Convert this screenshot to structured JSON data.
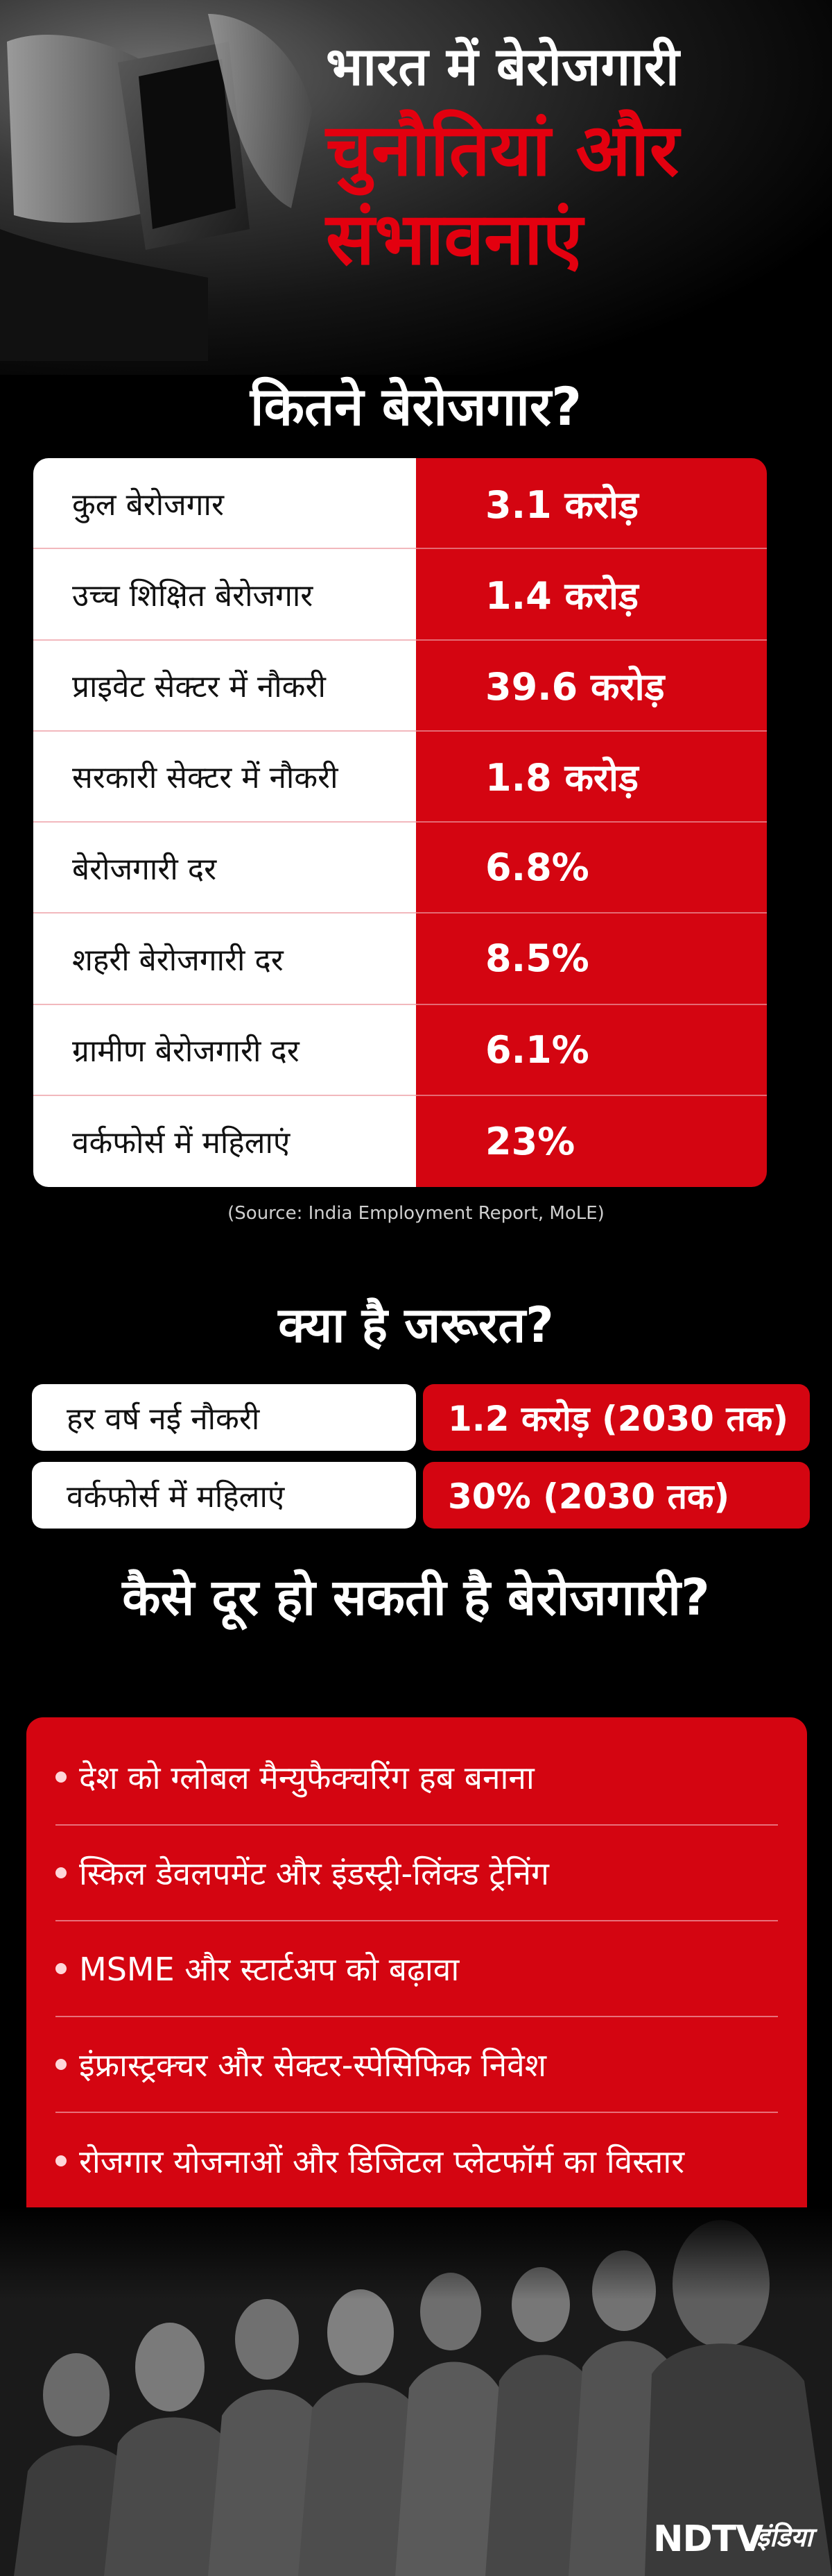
{
  "header": {
    "title_line1": "भारत में बेरोजगारी",
    "title_line2": "चुनौतियां और",
    "title_line3": "संभावनाएं"
  },
  "stats": {
    "heading": "कितने बेरोजगार?",
    "rows": [
      {
        "label": "कुल बेरोजगार",
        "value": "3.1 करोड़"
      },
      {
        "label": "उच्च शिक्षित बेरोजगार",
        "value": "1.4 करोड़"
      },
      {
        "label": "प्राइवेट सेक्टर में नौकरी",
        "value": "39.6 करोड़"
      },
      {
        "label": "सरकारी सेक्टर में नौकरी",
        "value": "1.8 करोड़"
      },
      {
        "label": "बेरोजगारी दर",
        "value": "6.8%"
      },
      {
        "label": "शहरी बेरोजगारी दर",
        "value": "8.5%"
      },
      {
        "label": "ग्रामीण बेरोजगारी दर",
        "value": "6.1%"
      },
      {
        "label": "वर्कफोर्स में महिलाएं",
        "value": "23%"
      }
    ],
    "source": "(Source: India Employment Report, MoLE)"
  },
  "needs": {
    "heading": "क्या है जरूरत?",
    "rows": [
      {
        "label": "हर वर्ष नई नौकरी",
        "value": "1.2 करोड़ (2030 तक)"
      },
      {
        "label": "वर्कफोर्स में महिलाएं",
        "value": "30% (2030 तक)"
      }
    ]
  },
  "solutions": {
    "heading": "कैसे दूर हो सकती है बेरोजगारी?",
    "items": [
      "देश को ग्लोबल मैन्युफैक्चरिंग हब बनाना",
      "स्किल डेवलपमेंट और इंडस्ट्री-लिंक्ड ट्रेनिंग",
      "MSME और स्टार्टअप को बढ़ावा",
      "इंफ्रास्ट्रक्चर और सेक्टर-स्पेसिफिक निवेश",
      "रोजगार योजनाओं और डिजिटल प्लेटफॉर्म का विस्तार"
    ]
  },
  "logo": {
    "main": "NDTV",
    "sub": "इंडिया"
  },
  "colors": {
    "accent": "#d40511",
    "title_red": "#e3000f",
    "background": "#000000"
  }
}
